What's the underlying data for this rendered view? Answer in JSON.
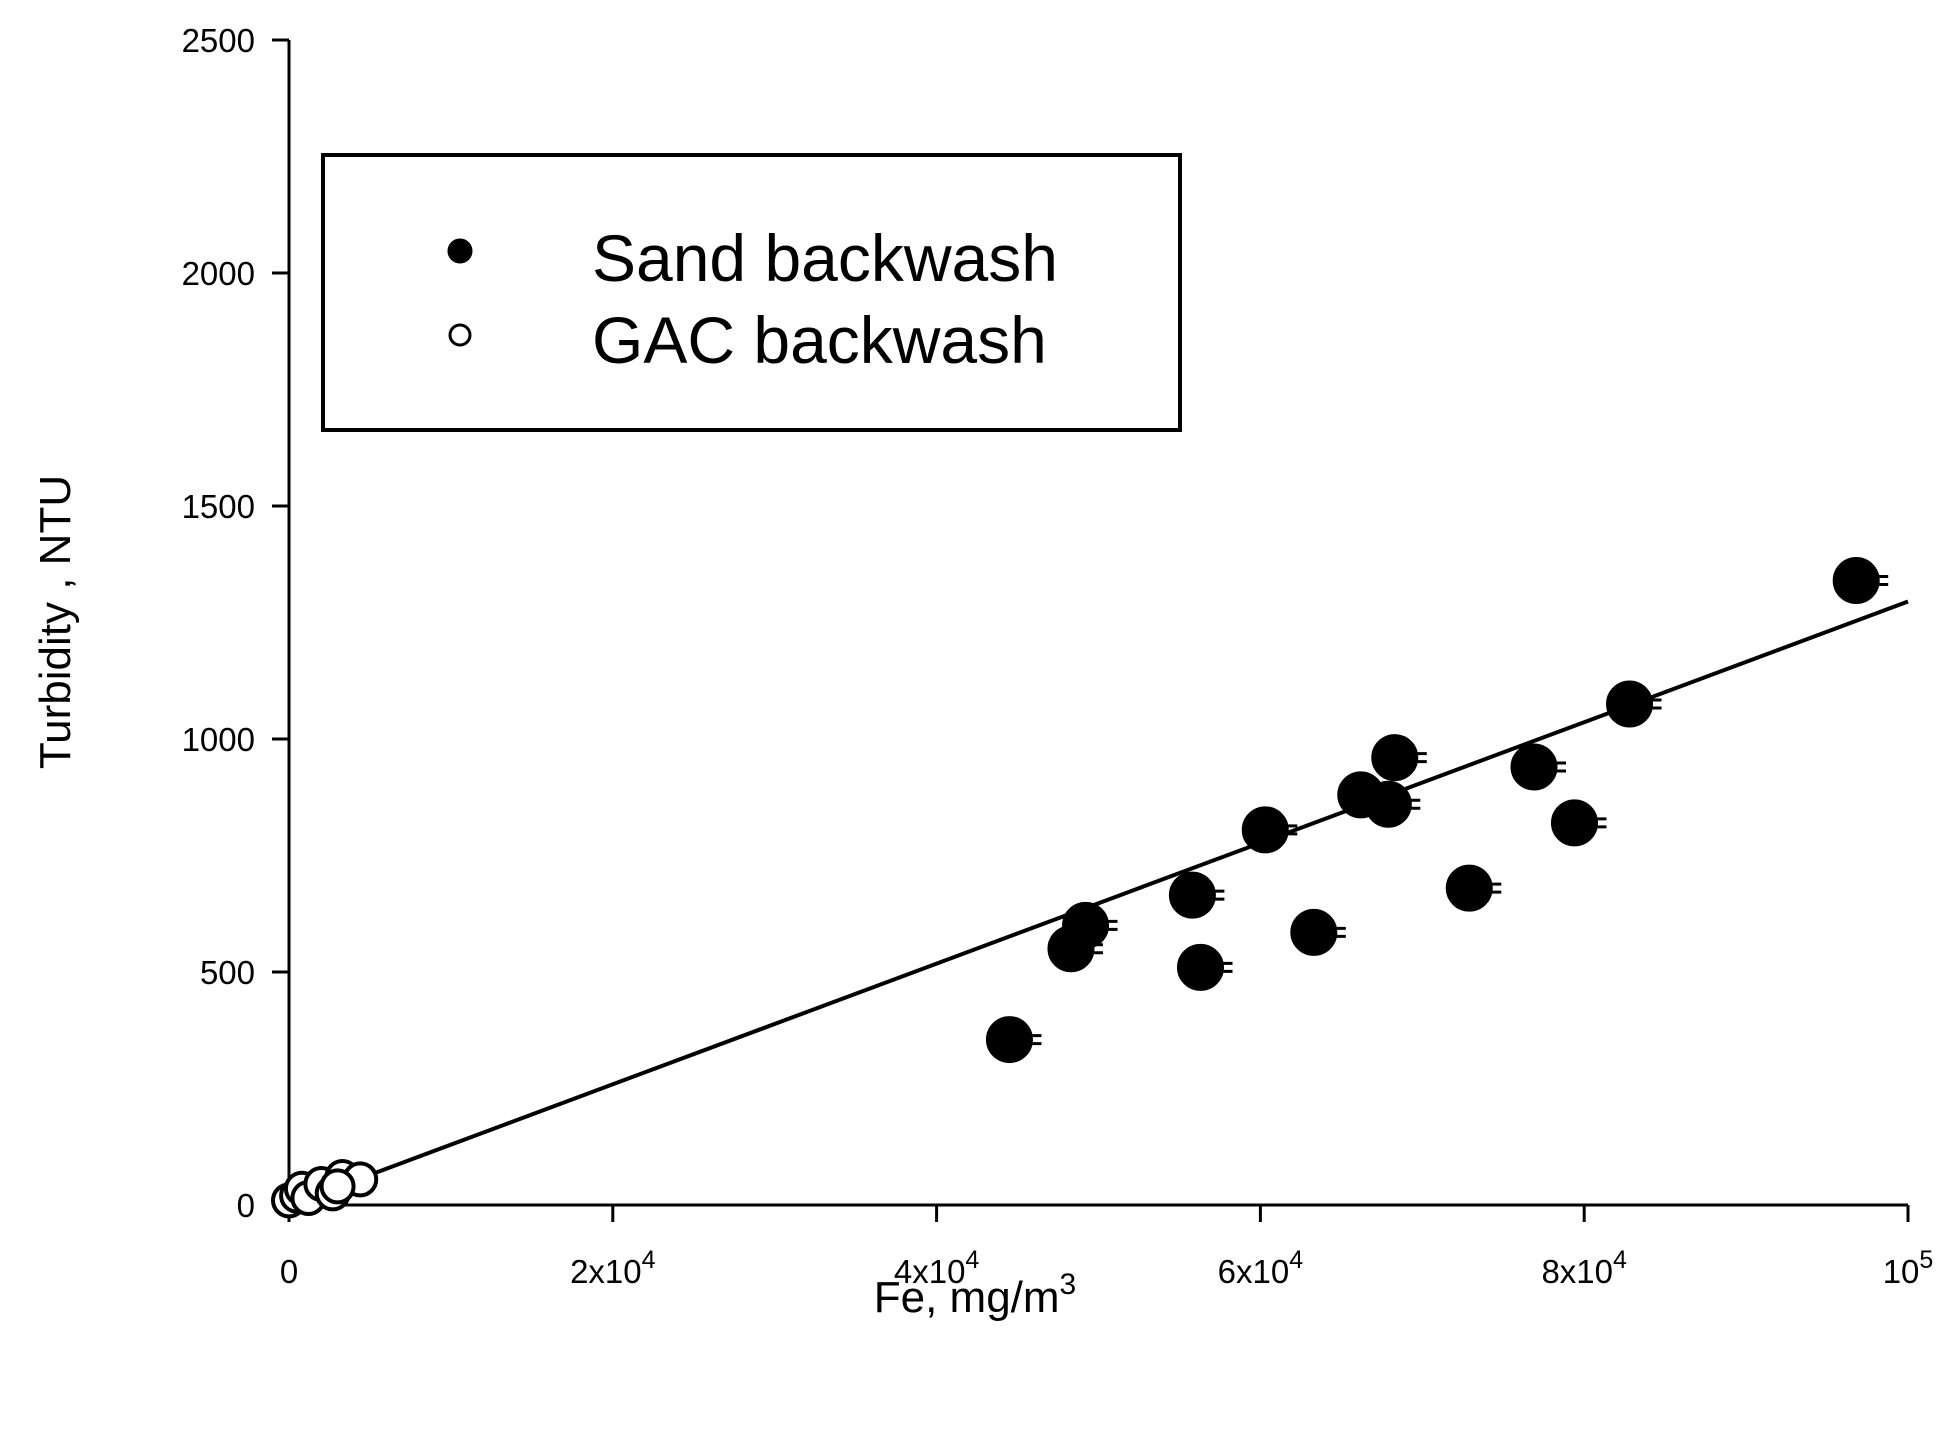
{
  "chart_data": {
    "type": "scatter",
    "title": "",
    "xlabel": "Fe, mg/m",
    "xlabel_superscript": "3",
    "ylabel": "Turbidity , NTU",
    "xlim": [
      0,
      100000
    ],
    "ylim": [
      0,
      2500
    ],
    "grid": false,
    "legend_position": "top-left",
    "x_ticks": [
      {
        "value": 0,
        "base": "0",
        "exp": ""
      },
      {
        "value": 20000,
        "base": "2x10",
        "exp": "4"
      },
      {
        "value": 40000,
        "base": "4x10",
        "exp": "4"
      },
      {
        "value": 60000,
        "base": "6x10",
        "exp": "4"
      },
      {
        "value": 80000,
        "base": "8x10",
        "exp": "4"
      },
      {
        "value": 100000,
        "base": "10",
        "exp": "5"
      }
    ],
    "y_ticks": [
      {
        "value": 0,
        "label": "0"
      },
      {
        "value": 500,
        "label": "500"
      },
      {
        "value": 1000,
        "label": "1000"
      },
      {
        "value": 1500,
        "label": "1500"
      },
      {
        "value": 2000,
        "label": "2000"
      },
      {
        "value": 2500,
        "label": "2500"
      }
    ],
    "series": [
      {
        "name": "Sand backwash",
        "marker": "filled-circle",
        "color": "#000000",
        "points": [
          [
            44500,
            355
          ],
          [
            48300,
            550
          ],
          [
            49200,
            600
          ],
          [
            55800,
            665
          ],
          [
            56300,
            510
          ],
          [
            60300,
            805
          ],
          [
            63300,
            585
          ],
          [
            66200,
            880
          ],
          [
            67900,
            860
          ],
          [
            68300,
            960
          ],
          [
            72900,
            680
          ],
          [
            76900,
            940
          ],
          [
            79400,
            820
          ],
          [
            82800,
            1075
          ],
          [
            96800,
            1340
          ]
        ]
      },
      {
        "name": "GAC backwash",
        "marker": "open-circle",
        "color": "#000000",
        "points": [
          [
            0,
            10
          ],
          [
            500,
            20
          ],
          [
            800,
            35
          ],
          [
            1200,
            15
          ],
          [
            2000,
            45
          ],
          [
            2700,
            25
          ],
          [
            3300,
            60
          ],
          [
            4400,
            55
          ],
          [
            3000,
            40
          ]
        ]
      }
    ],
    "regression_line": {
      "x": [
        0,
        100000
      ],
      "y": [
        0,
        1295
      ]
    }
  }
}
